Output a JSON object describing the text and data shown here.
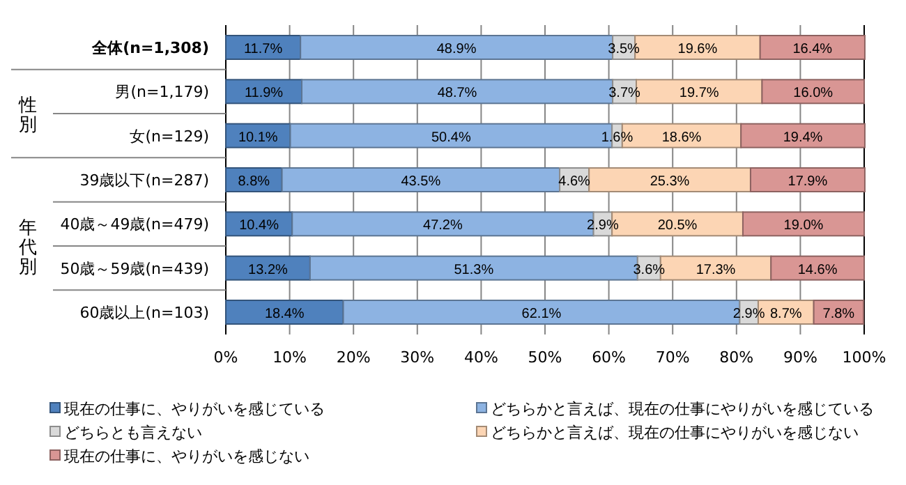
{
  "chart_data": {
    "type": "bar",
    "orientation": "horizontal",
    "stacked": true,
    "categories": [
      "全体(n=1,308)",
      "男(n=1,179)",
      "女(n=129)",
      "39歳以下(n=287)",
      "40歳～49歳(n=479)",
      "50歳～59歳(n=439)",
      "60歳以上(n=103)"
    ],
    "annotations": [
      "性別",
      "年代別"
    ],
    "series": [
      {
        "name": "現在の仕事に、やりがいを感じている",
        "color": "#4f81bd",
        "values": [
          11.7,
          11.9,
          10.1,
          8.8,
          10.4,
          13.2,
          18.4
        ],
        "value_labels": [
          "11.7%",
          "11.9%",
          "10.1%",
          "8.8%",
          "10.4%",
          "13.2%",
          "18.4%"
        ]
      },
      {
        "name": "どちらかと言えば、現在の仕事にやりがいを感じている",
        "color": "#8db3e2",
        "values": [
          48.9,
          48.7,
          50.4,
          43.5,
          47.2,
          51.3,
          62.1
        ],
        "value_labels": [
          "48.9%",
          "48.7%",
          "50.4%",
          "43.5%",
          "47.2%",
          "51.3%",
          "62.1%"
        ]
      },
      {
        "name": "どちらとも言えない",
        "color": "#d9d9d9",
        "values": [
          3.5,
          3.7,
          1.6,
          4.6,
          2.9,
          3.6,
          2.9
        ],
        "value_labels": [
          "3.5%",
          "3.7%",
          "1.6%",
          "4.6%",
          "2.9%",
          "3.6%",
          "2.9%"
        ]
      },
      {
        "name": "どちらかと言えば、現在の仕事にやりがいを感じない",
        "color": "#fcd5b4",
        "values": [
          19.6,
          19.7,
          18.6,
          25.3,
          20.5,
          17.3,
          8.7
        ],
        "value_labels": [
          "19.6%",
          "19.7%",
          "18.6%",
          "25.3%",
          "20.5%",
          "17.3%",
          "8.7%"
        ]
      },
      {
        "name": "現在の仕事に、やりがいを感じない",
        "color": "#d99694",
        "values": [
          16.4,
          16.0,
          19.4,
          17.9,
          19.0,
          14.6,
          7.8
        ],
        "value_labels": [
          "16.4%",
          "16.0%",
          "19.4%",
          "17.9%",
          "19.0%",
          "14.6%",
          "7.8%"
        ]
      }
    ],
    "xlim": [
      0,
      100
    ],
    "xticks": [
      {
        "value": 0,
        "label": "0%"
      },
      {
        "value": 10,
        "label": "10%"
      },
      {
        "value": 20,
        "label": "20%"
      },
      {
        "value": 30,
        "label": "30%"
      },
      {
        "value": 40,
        "label": "40%"
      },
      {
        "value": 50,
        "label": "50%"
      },
      {
        "value": 60,
        "label": "60%"
      },
      {
        "value": 70,
        "label": "70%"
      },
      {
        "value": 80,
        "label": "80%"
      },
      {
        "value": 90,
        "label": "90%"
      },
      {
        "value": 100,
        "label": "100%"
      }
    ],
    "grid": "x",
    "legend": "bottom"
  }
}
